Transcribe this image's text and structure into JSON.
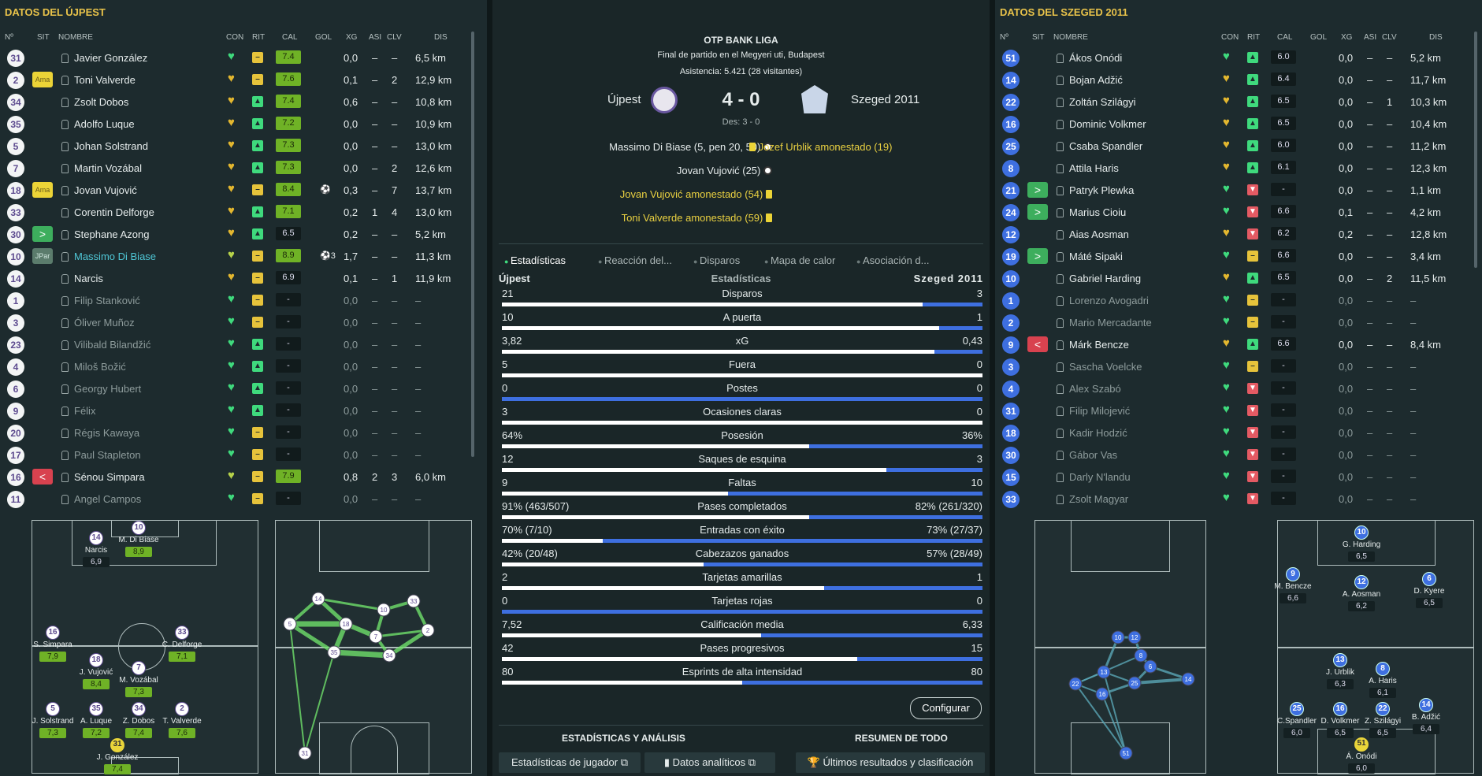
{
  "left": {
    "title": "DATOS DEL ÚJPEST"
  },
  "right": {
    "title": "DATOS DEL SZEGED 2011"
  },
  "headers": {
    "num": "Nº",
    "sit": "SIT",
    "nombre": "NOMBRE",
    "con": "CON",
    "rit": "RIT",
    "cal": "CAL",
    "gol": "GOL",
    "xg": "XG",
    "asi": "ASI",
    "clv": "CLV",
    "dis": "DIS"
  },
  "ujpest_players": [
    {
      "num": "31",
      "sit": "",
      "name": "Javier González",
      "con": "g",
      "rit": "y",
      "cal": "7.4",
      "gol": "",
      "xg": "0,0",
      "asi": "–",
      "clv": "–",
      "dis": "6,5 km",
      "sub": false
    },
    {
      "num": "2",
      "sit": "Ama",
      "name": "Toni Valverde",
      "con": "y",
      "rit": "y",
      "cal": "7.6",
      "gol": "",
      "xg": "0,1",
      "asi": "–",
      "clv": "2",
      "dis": "12,9 km",
      "sub": false
    },
    {
      "num": "34",
      "sit": "",
      "name": "Zsolt Dobos",
      "con": "y",
      "rit": "g",
      "cal": "7.4",
      "gol": "",
      "xg": "0,6",
      "asi": "–",
      "clv": "–",
      "dis": "10,8 km",
      "sub": false
    },
    {
      "num": "35",
      "sit": "",
      "name": "Adolfo Luque",
      "con": "y",
      "rit": "g",
      "cal": "7.2",
      "gol": "",
      "xg": "0,0",
      "asi": "–",
      "clv": "–",
      "dis": "10,9 km",
      "sub": false
    },
    {
      "num": "5",
      "sit": "",
      "name": "Johan Solstrand",
      "con": "y",
      "rit": "g",
      "cal": "7.3",
      "gol": "",
      "xg": "0,0",
      "asi": "–",
      "clv": "–",
      "dis": "13,0 km",
      "sub": false
    },
    {
      "num": "7",
      "sit": "",
      "name": "Martin Vozábal",
      "con": "y",
      "rit": "g",
      "cal": "7.3",
      "gol": "",
      "xg": "0,0",
      "asi": "–",
      "clv": "2",
      "dis": "12,6 km",
      "sub": false
    },
    {
      "num": "18",
      "sit": "Ama",
      "name": "Jovan Vujović",
      "con": "y",
      "rit": "y",
      "cal": "8.4",
      "gol": "⚽",
      "xg": "0,3",
      "asi": "–",
      "clv": "7",
      "dis": "13,7 km",
      "sub": false
    },
    {
      "num": "33",
      "sit": "",
      "name": "Corentin Delforge",
      "con": "y",
      "rit": "g",
      "cal": "7.1",
      "gol": "",
      "xg": "0,2",
      "asi": "1",
      "clv": "4",
      "dis": "13,0 km",
      "sub": false
    },
    {
      "num": "30",
      "sit": ">",
      "name": "Stephane Azong",
      "con": "y",
      "rit": "g",
      "cal": "6.5",
      "gol": "",
      "xg": "0,2",
      "asi": "–",
      "clv": "–",
      "dis": "5,2 km",
      "sub": false
    },
    {
      "num": "10",
      "sit": "JPar",
      "name": "Massimo Di Biase",
      "con": "gy",
      "rit": "y",
      "cal": "8.9",
      "gol": "⚽3",
      "xg": "1,7",
      "asi": "–",
      "clv": "–",
      "dis": "11,3 km",
      "sub": false,
      "hl": true
    },
    {
      "num": "14",
      "sit": "",
      "name": "Narcis",
      "con": "y",
      "rit": "y",
      "cal": "6.9",
      "gol": "",
      "xg": "0,1",
      "asi": "–",
      "clv": "1",
      "dis": "11,9 km",
      "sub": false
    },
    {
      "num": "1",
      "sit": "",
      "name": "Filip Stanković",
      "con": "g",
      "rit": "y",
      "cal": "-",
      "gol": "",
      "xg": "0,0",
      "asi": "–",
      "clv": "–",
      "dis": "–",
      "sub": true
    },
    {
      "num": "3",
      "sit": "",
      "name": "Óliver Muñoz",
      "con": "g",
      "rit": "y",
      "cal": "-",
      "gol": "",
      "xg": "0,0",
      "asi": "–",
      "clv": "–",
      "dis": "–",
      "sub": true
    },
    {
      "num": "23",
      "sit": "",
      "name": "Vilibald Bilandžić",
      "con": "g",
      "rit": "g",
      "cal": "-",
      "gol": "",
      "xg": "0,0",
      "asi": "–",
      "clv": "–",
      "dis": "–",
      "sub": true
    },
    {
      "num": "4",
      "sit": "",
      "name": "Miloš Božić",
      "con": "g",
      "rit": "g",
      "cal": "-",
      "gol": "",
      "xg": "0,0",
      "asi": "–",
      "clv": "–",
      "dis": "–",
      "sub": true
    },
    {
      "num": "6",
      "sit": "",
      "name": "Georgy Hubert",
      "con": "g",
      "rit": "g",
      "cal": "-",
      "gol": "",
      "xg": "0,0",
      "asi": "–",
      "clv": "–",
      "dis": "–",
      "sub": true
    },
    {
      "num": "9",
      "sit": "",
      "name": "Félix",
      "con": "g",
      "rit": "g",
      "cal": "-",
      "gol": "",
      "xg": "0,0",
      "asi": "–",
      "clv": "–",
      "dis": "–",
      "sub": true
    },
    {
      "num": "20",
      "sit": "",
      "name": "Régis Kawaya",
      "con": "g",
      "rit": "y",
      "cal": "-",
      "gol": "",
      "xg": "0,0",
      "asi": "–",
      "clv": "–",
      "dis": "–",
      "sub": true
    },
    {
      "num": "17",
      "sit": "",
      "name": "Paul Stapleton",
      "con": "g",
      "rit": "y",
      "cal": "-",
      "gol": "",
      "xg": "0,0",
      "asi": "–",
      "clv": "–",
      "dis": "–",
      "sub": true
    },
    {
      "num": "16",
      "sit": "<",
      "name": "Sénou Simpara",
      "con": "gy",
      "rit": "y",
      "cal": "7.9",
      "gol": "",
      "xg": "0,8",
      "asi": "2",
      "clv": "3",
      "dis": "6,0 km",
      "sub": false
    },
    {
      "num": "11",
      "sit": "",
      "name": "Angel Campos",
      "con": "g",
      "rit": "y",
      "cal": "-",
      "gol": "",
      "xg": "0,0",
      "asi": "–",
      "clv": "–",
      "dis": "–",
      "sub": true
    }
  ],
  "szeged_players": [
    {
      "num": "51",
      "sit": "",
      "name": "Ákos Onódi",
      "con": "g",
      "rit": "g",
      "cal": "6.0",
      "gol": "",
      "xg": "0,0",
      "asi": "–",
      "clv": "–",
      "dis": "5,2 km",
      "sub": false
    },
    {
      "num": "14",
      "sit": "",
      "name": "Bojan Adžić",
      "con": "y",
      "rit": "g",
      "cal": "6.4",
      "gol": "",
      "xg": "0,0",
      "asi": "–",
      "clv": "–",
      "dis": "11,7 km",
      "sub": false
    },
    {
      "num": "22",
      "sit": "",
      "name": "Zoltán Szilágyi",
      "con": "y",
      "rit": "g",
      "cal": "6.5",
      "gol": "",
      "xg": "0,0",
      "asi": "–",
      "clv": "1",
      "dis": "10,3 km",
      "sub": false
    },
    {
      "num": "16",
      "sit": "",
      "name": "Dominic Volkmer",
      "con": "y",
      "rit": "g",
      "cal": "6.5",
      "gol": "",
      "xg": "0,0",
      "asi": "–",
      "clv": "–",
      "dis": "10,4 km",
      "sub": false
    },
    {
      "num": "25",
      "sit": "",
      "name": "Csaba Spandler",
      "con": "y",
      "rit": "g",
      "cal": "6.0",
      "gol": "",
      "xg": "0,0",
      "asi": "–",
      "clv": "–",
      "dis": "11,2 km",
      "sub": false
    },
    {
      "num": "8",
      "sit": "",
      "name": "Attila Haris",
      "con": "y",
      "rit": "g",
      "cal": "6.1",
      "gol": "",
      "xg": "0,0",
      "asi": "–",
      "clv": "–",
      "dis": "12,3 km",
      "sub": false
    },
    {
      "num": "21",
      "sit": ">",
      "name": "Patryk Plewka",
      "con": "g",
      "rit": "r",
      "cal": "-",
      "gol": "",
      "xg": "0,0",
      "asi": "–",
      "clv": "–",
      "dis": "1,1 km",
      "sub": false
    },
    {
      "num": "24",
      "sit": ">",
      "name": "Marius Cioiu",
      "con": "g",
      "rit": "r",
      "cal": "6.6",
      "gol": "",
      "xg": "0,1",
      "asi": "–",
      "clv": "–",
      "dis": "4,2 km",
      "sub": false
    },
    {
      "num": "12",
      "sit": "",
      "name": "Aias Aosman",
      "con": "y",
      "rit": "r",
      "cal": "6.2",
      "gol": "",
      "xg": "0,2",
      "asi": "–",
      "clv": "–",
      "dis": "12,8 km",
      "sub": false
    },
    {
      "num": "19",
      "sit": ">",
      "name": "Máté Sipaki",
      "con": "g",
      "rit": "y",
      "cal": "6.6",
      "gol": "",
      "xg": "0,0",
      "asi": "–",
      "clv": "–",
      "dis": "3,4 km",
      "sub": false
    },
    {
      "num": "10",
      "sit": "",
      "name": "Gabriel Harding",
      "con": "y",
      "rit": "g",
      "cal": "6.5",
      "gol": "",
      "xg": "0,0",
      "asi": "–",
      "clv": "2",
      "dis": "11,5 km",
      "sub": false
    },
    {
      "num": "1",
      "sit": "",
      "name": "Lorenzo Avogadri",
      "con": "g",
      "rit": "y",
      "cal": "-",
      "gol": "",
      "xg": "0,0",
      "asi": "–",
      "clv": "–",
      "dis": "–",
      "sub": true
    },
    {
      "num": "2",
      "sit": "",
      "name": "Mario Mercadante",
      "con": "g",
      "rit": "y",
      "cal": "-",
      "gol": "",
      "xg": "0,0",
      "asi": "–",
      "clv": "–",
      "dis": "–",
      "sub": true
    },
    {
      "num": "9",
      "sit": "<",
      "name": "Márk Bencze",
      "con": "y",
      "rit": "g",
      "cal": "6.6",
      "gol": "",
      "xg": "0,0",
      "asi": "–",
      "clv": "–",
      "dis": "8,4 km",
      "sub": false
    },
    {
      "num": "3",
      "sit": "",
      "name": "Sascha Voelcke",
      "con": "g",
      "rit": "y",
      "cal": "-",
      "gol": "",
      "xg": "0,0",
      "asi": "–",
      "clv": "–",
      "dis": "–",
      "sub": true
    },
    {
      "num": "4",
      "sit": "",
      "name": "Alex Szabó",
      "con": "g",
      "rit": "r",
      "cal": "-",
      "gol": "",
      "xg": "0,0",
      "asi": "–",
      "clv": "–",
      "dis": "–",
      "sub": true
    },
    {
      "num": "31",
      "sit": "",
      "name": "Filip Milojević",
      "con": "g",
      "rit": "r",
      "cal": "-",
      "gol": "",
      "xg": "0,0",
      "asi": "–",
      "clv": "–",
      "dis": "–",
      "sub": true
    },
    {
      "num": "18",
      "sit": "",
      "name": "Kadir Hodzić",
      "con": "g",
      "rit": "r",
      "cal": "-",
      "gol": "",
      "xg": "0,0",
      "asi": "–",
      "clv": "–",
      "dis": "–",
      "sub": true
    },
    {
      "num": "30",
      "sit": "",
      "name": "Gábor Vas",
      "con": "g",
      "rit": "r",
      "cal": "-",
      "gol": "",
      "xg": "0,0",
      "asi": "–",
      "clv": "–",
      "dis": "–",
      "sub": true
    },
    {
      "num": "15",
      "sit": "",
      "name": "Darly N'landu",
      "con": "g",
      "rit": "r",
      "cal": "-",
      "gol": "",
      "xg": "0,0",
      "asi": "–",
      "clv": "–",
      "dis": "–",
      "sub": true
    },
    {
      "num": "33",
      "sit": "",
      "name": "Zsolt Magyar",
      "con": "g",
      "rit": "r",
      "cal": "-",
      "gol": "",
      "xg": "0,0",
      "asi": "–",
      "clv": "–",
      "dis": "–",
      "sub": true
    }
  ],
  "match": {
    "competition": "OTP BANK LIGA",
    "venue": "Final de partido en el Megyeri uti, Budapest",
    "attendance": "Asistencia: 5.421 (28 visitantes)",
    "home": "Újpest",
    "away": "Szeged 2011",
    "score": "4 - 0",
    "halftime": "Des: 3 - 0",
    "home_events": [
      {
        "text": "Massimo Di Biase (5, pen 20, 50)",
        "type": "goal"
      },
      {
        "text": "Jovan Vujović (25)",
        "type": "goal"
      },
      {
        "text": "Jovan Vujović amonestado (54)",
        "type": "card"
      },
      {
        "text": "Toni Valverde amonestado (59)",
        "type": "card"
      }
    ],
    "away_events": [
      {
        "text": "Jozef Urblik amonestado (19)",
        "type": "card"
      }
    ]
  },
  "tabs": [
    "Estadísticas",
    "Reacción del...",
    "Disparos",
    "Mapa de calor",
    "Asociación d..."
  ],
  "stats_header": {
    "home": "Újpest",
    "center": "Estadísticas",
    "away": "Szeged 2011"
  },
  "stats": [
    {
      "label": "Disparos",
      "home": "21",
      "away": "3",
      "ratio": 0.875
    },
    {
      "label": "A puerta",
      "home": "10",
      "away": "1",
      "ratio": 0.91
    },
    {
      "label": "xG",
      "home": "3,82",
      "away": "0,43",
      "ratio": 0.9
    },
    {
      "label": "Fuera",
      "home": "5",
      "away": "0",
      "ratio": 1.0
    },
    {
      "label": "Postes",
      "home": "0",
      "away": "0",
      "ratio": 0.0
    },
    {
      "label": "Ocasiones claras",
      "home": "3",
      "away": "0",
      "ratio": 1.0
    },
    {
      "label": "Posesión",
      "home": "64%",
      "away": "36%",
      "ratio": 0.64
    },
    {
      "label": "Saques de esquina",
      "home": "12",
      "away": "3",
      "ratio": 0.8
    },
    {
      "label": "Faltas",
      "home": "9",
      "away": "10",
      "ratio": 0.47
    },
    {
      "label": "Pases completados",
      "home": "91% (463/507)",
      "away": "82% (261/320)",
      "ratio": 0.64
    },
    {
      "label": "Entradas con éxito",
      "home": "70% (7/10)",
      "away": "73% (27/37)",
      "ratio": 0.21
    },
    {
      "label": "Cabezazos ganados",
      "home": "42% (20/48)",
      "away": "57% (28/49)",
      "ratio": 0.42
    },
    {
      "label": "Tarjetas amarillas",
      "home": "2",
      "away": "1",
      "ratio": 0.67
    },
    {
      "label": "Tarjetas rojas",
      "home": "0",
      "away": "0",
      "ratio": 0.0
    },
    {
      "label": "Calificación media",
      "home": "7,52",
      "away": "6,33",
      "ratio": 0.54
    },
    {
      "label": "Pases progresivos",
      "home": "42",
      "away": "15",
      "ratio": 0.74
    },
    {
      "label": "Esprints de alta intensidad",
      "home": "80",
      "away": "80",
      "ratio": 0.5
    }
  ],
  "buttons": {
    "configurar": "Configurar",
    "section_left": "ESTADÍSTICAS Y ANÁLISIS",
    "section_right": "RESUMEN DE TODO",
    "player_stats": "Estadísticas de jugador",
    "analytics": "Datos analíticos",
    "results": "Últimos resultados y clasificación"
  },
  "ujpest_formation": [
    {
      "num": "14",
      "name": "Narcis",
      "rating": "6,9"
    },
    {
      "num": "10",
      "name": "M. Di Biase",
      "rating": "8,9"
    },
    {
      "num": "16",
      "name": "S. Simpara",
      "rating": "7,9"
    },
    {
      "num": "33",
      "name": "C. Delforge",
      "rating": "7,1"
    },
    {
      "num": "18",
      "name": "J. Vujović",
      "rating": "8,4"
    },
    {
      "num": "7",
      "name": "M. Vozábal",
      "rating": "7,3"
    },
    {
      "num": "5",
      "name": "J. Solstrand",
      "rating": "7,3"
    },
    {
      "num": "35",
      "name": "A. Luque",
      "rating": "7,2"
    },
    {
      "num": "34",
      "name": "Z. Dobos",
      "rating": "7,4"
    },
    {
      "num": "2",
      "name": "T. Valverde",
      "rating": "7,6"
    },
    {
      "num": "31",
      "name": "J. González",
      "rating": "7,4"
    }
  ],
  "szeged_formation": [
    {
      "num": "10",
      "name": "G. Harding",
      "rating": "6,5"
    },
    {
      "num": "9",
      "name": "M. Bencze",
      "rating": "6,6"
    },
    {
      "num": "12",
      "name": "A. Aosman",
      "rating": "6,2"
    },
    {
      "num": "6",
      "name": "D. Kyere",
      "rating": "6,5"
    },
    {
      "num": "13",
      "name": "J. Urblik",
      "rating": "6,3"
    },
    {
      "num": "8",
      "name": "A. Haris",
      "rating": "6,1"
    },
    {
      "num": "25",
      "name": "C.Spandler",
      "rating": "6,0"
    },
    {
      "num": "16",
      "name": "D. Volkmer",
      "rating": "6,5"
    },
    {
      "num": "22",
      "name": "Z. Szilágyi",
      "rating": "6,5"
    },
    {
      "num": "14",
      "name": "B. Adžić",
      "rating": "6,4"
    },
    {
      "num": "51",
      "name": "Á. Onódi",
      "rating": "6,0"
    }
  ],
  "ujpest_passnet": [
    "14",
    "10",
    "5",
    "18",
    "7",
    "33",
    "2",
    "35",
    "34",
    "31"
  ],
  "szeged_passnet": [
    "10",
    "12",
    "8",
    "13",
    "6",
    "22",
    "25",
    "16",
    "14",
    "51"
  ]
}
